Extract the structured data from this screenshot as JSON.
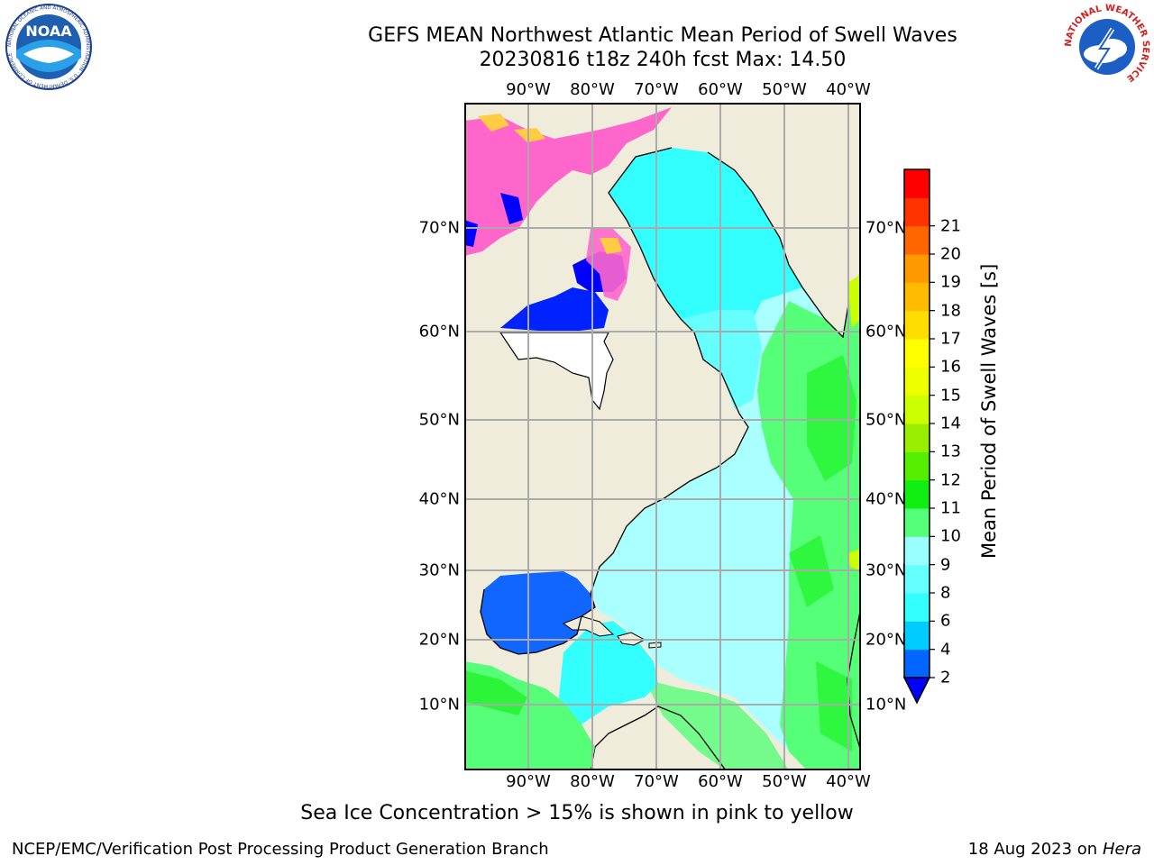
{
  "header": {
    "title_line1": "GEFS MEAN Northwest Atlantic Mean Period of Swell Waves",
    "title_line2": "20230816 t18z 240h fcst   Max: 14.50"
  },
  "logos": {
    "left": {
      "name": "noaa-logo",
      "text": "NOAA",
      "ring_text": "NATIONAL OCEANIC AND ATMOSPHERIC ADMINISTRATION · U.S. DEPARTMENT OF COMMERCE"
    },
    "right": {
      "name": "national-weather-service-logo",
      "ring_text": "NATIONAL WEATHER SERVICE"
    }
  },
  "map": {
    "lon_labels": [
      "90°W",
      "80°W",
      "70°W",
      "60°W",
      "50°W",
      "40°W"
    ],
    "lat_labels": [
      "70°N",
      "60°N",
      "50°N",
      "40°N",
      "30°N",
      "20°N",
      "10°N"
    ],
    "projection": "polar stereographic",
    "extent": {
      "lon_min": -100,
      "lon_max": -38,
      "lat_min": 2,
      "lat_max": 82
    }
  },
  "colorbar": {
    "label": "Mean Period of Swell Waves [s]",
    "ticks": [
      "2",
      "4",
      "6",
      "8",
      "9",
      "10",
      "11",
      "12",
      "13",
      "14",
      "15",
      "16",
      "17",
      "18",
      "19",
      "20",
      "21"
    ],
    "colors": [
      "#0066ff",
      "#00ccff",
      "#33ffff",
      "#66ffff",
      "#99ffff",
      "#55ff77",
      "#11ee11",
      "#55ee00",
      "#99ee00",
      "#ccff00",
      "#eeff00",
      "#ffff00",
      "#ffdd00",
      "#ffbb00",
      "#ff9900",
      "#ff6600",
      "#ff3300",
      "#ff0000"
    ],
    "extend": "min",
    "under_color": "#0000ff"
  },
  "legend_note": "Sea Ice Concentration > 15% is shown in pink to yellow",
  "footer": {
    "left": "NCEP/EMC/Verification Post Processing Product Generation Branch",
    "right_date": "18 Aug 2023 on",
    "right_host": "Hera"
  }
}
